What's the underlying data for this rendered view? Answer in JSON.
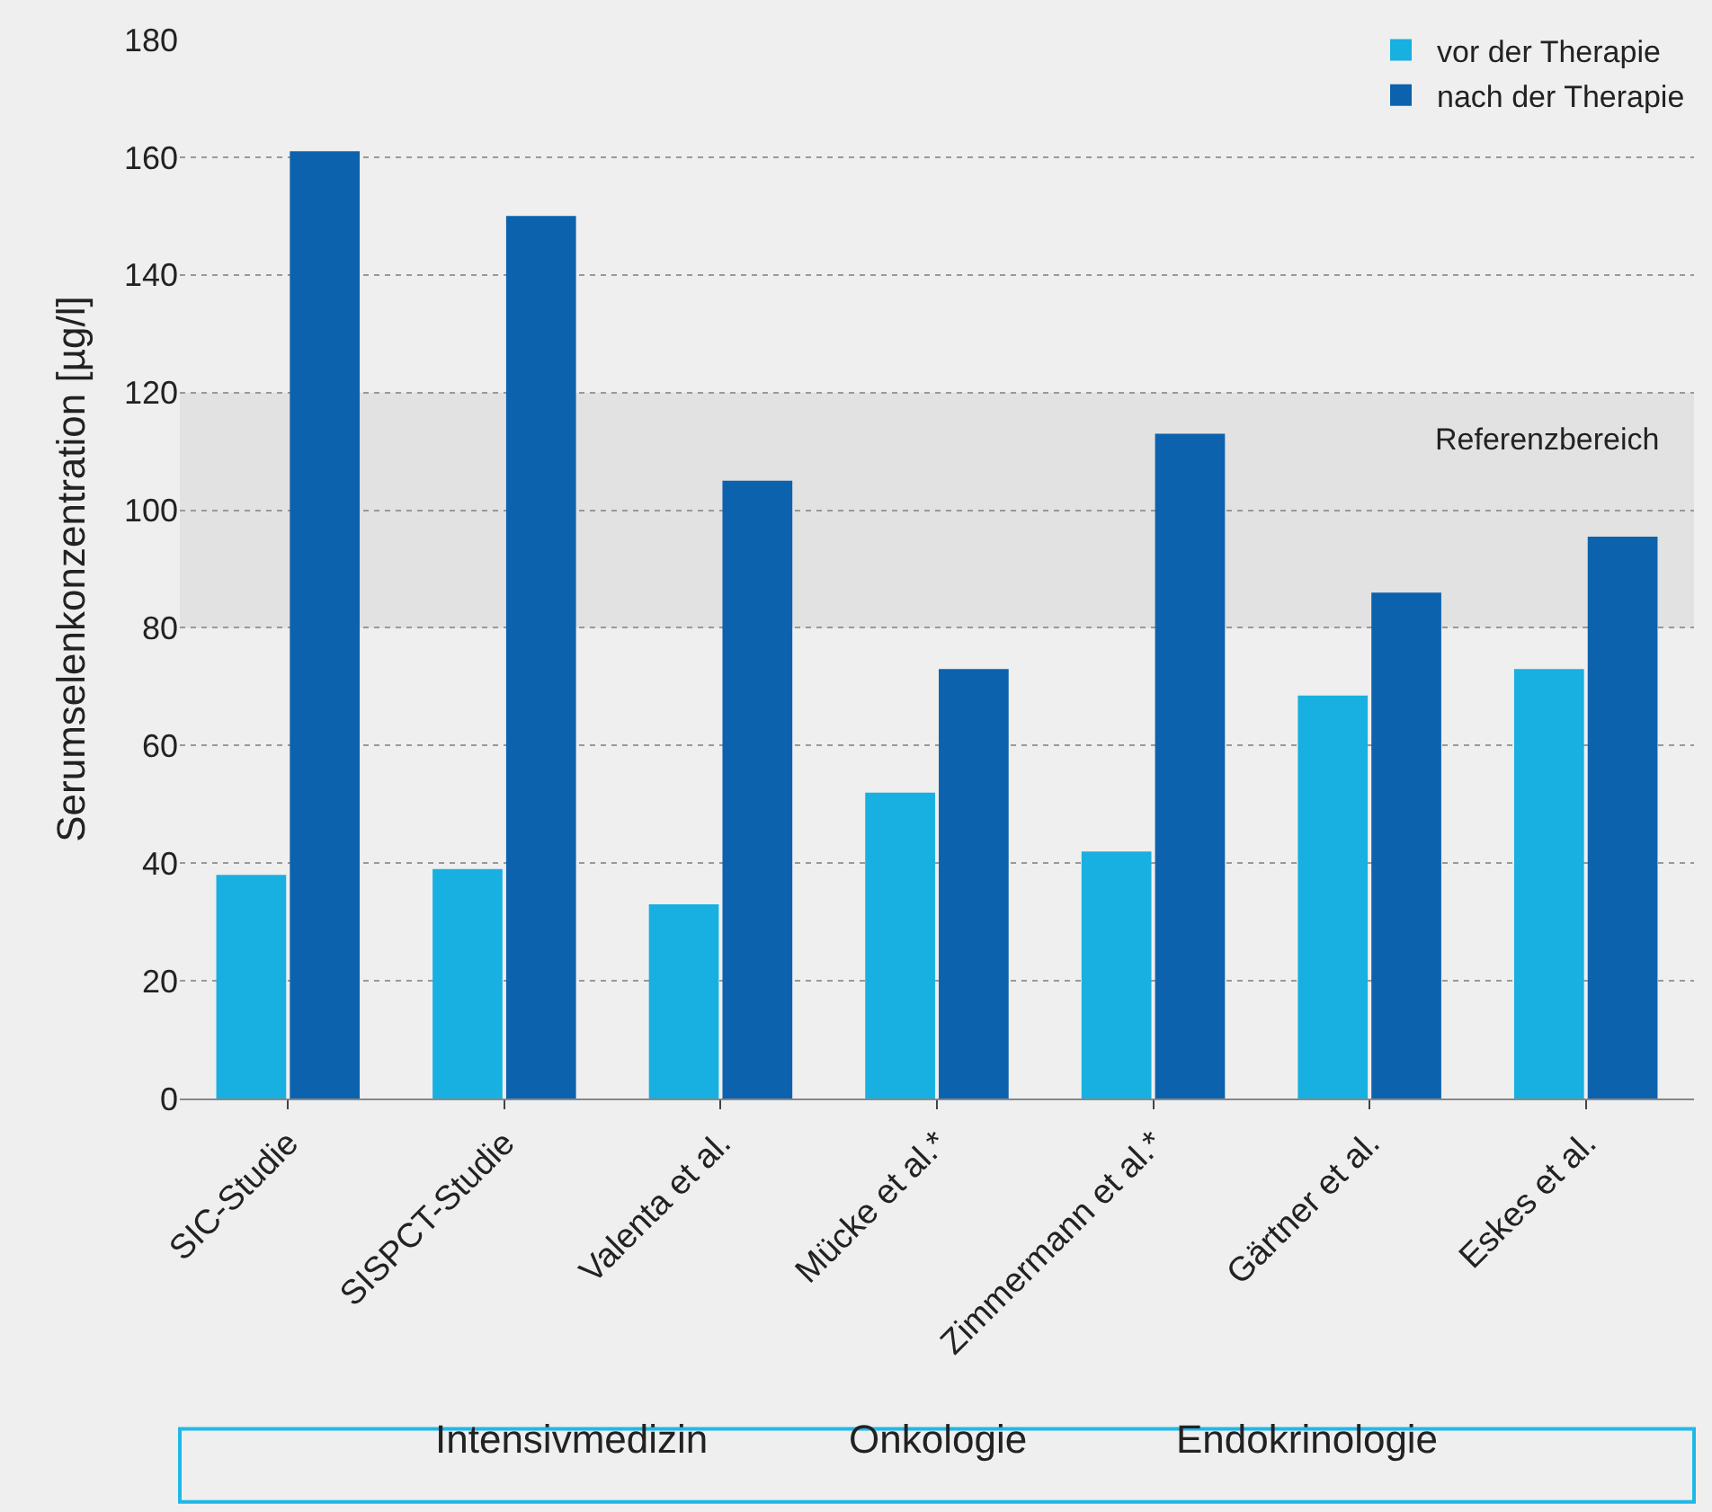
{
  "chart_data": {
    "type": "bar",
    "ylabel": "Serumselenkonzentration [µg/l]",
    "categories": [
      "SIC-Studie",
      "SISPCT-Studie",
      "Valenta et al.",
      "Mücke et al.*",
      "Zimmermann et al.*",
      "Gärtner et al.",
      "Eskes et al."
    ],
    "series": [
      {
        "name": "vor der Therapie",
        "color": "#18b0e0",
        "values": [
          38,
          39,
          33,
          52,
          42,
          68.5,
          73
        ]
      },
      {
        "name": "nach der Therapie",
        "color": "#0d62ad",
        "values": [
          161,
          150,
          105,
          73,
          113,
          86,
          95.5
        ]
      }
    ],
    "ylim": [
      0,
      180
    ],
    "yticks": [
      0,
      20,
      40,
      60,
      80,
      100,
      120,
      140,
      160,
      180
    ],
    "bands": [
      {
        "axis": "y",
        "from": 80,
        "to": 120,
        "label": "Referenzbereich",
        "color": "#e2e2e2"
      }
    ],
    "grid": "y",
    "legend": "top right",
    "annotations": [
      "Intensivmedizin",
      "Onkologie",
      "Endokrinologie"
    ]
  }
}
